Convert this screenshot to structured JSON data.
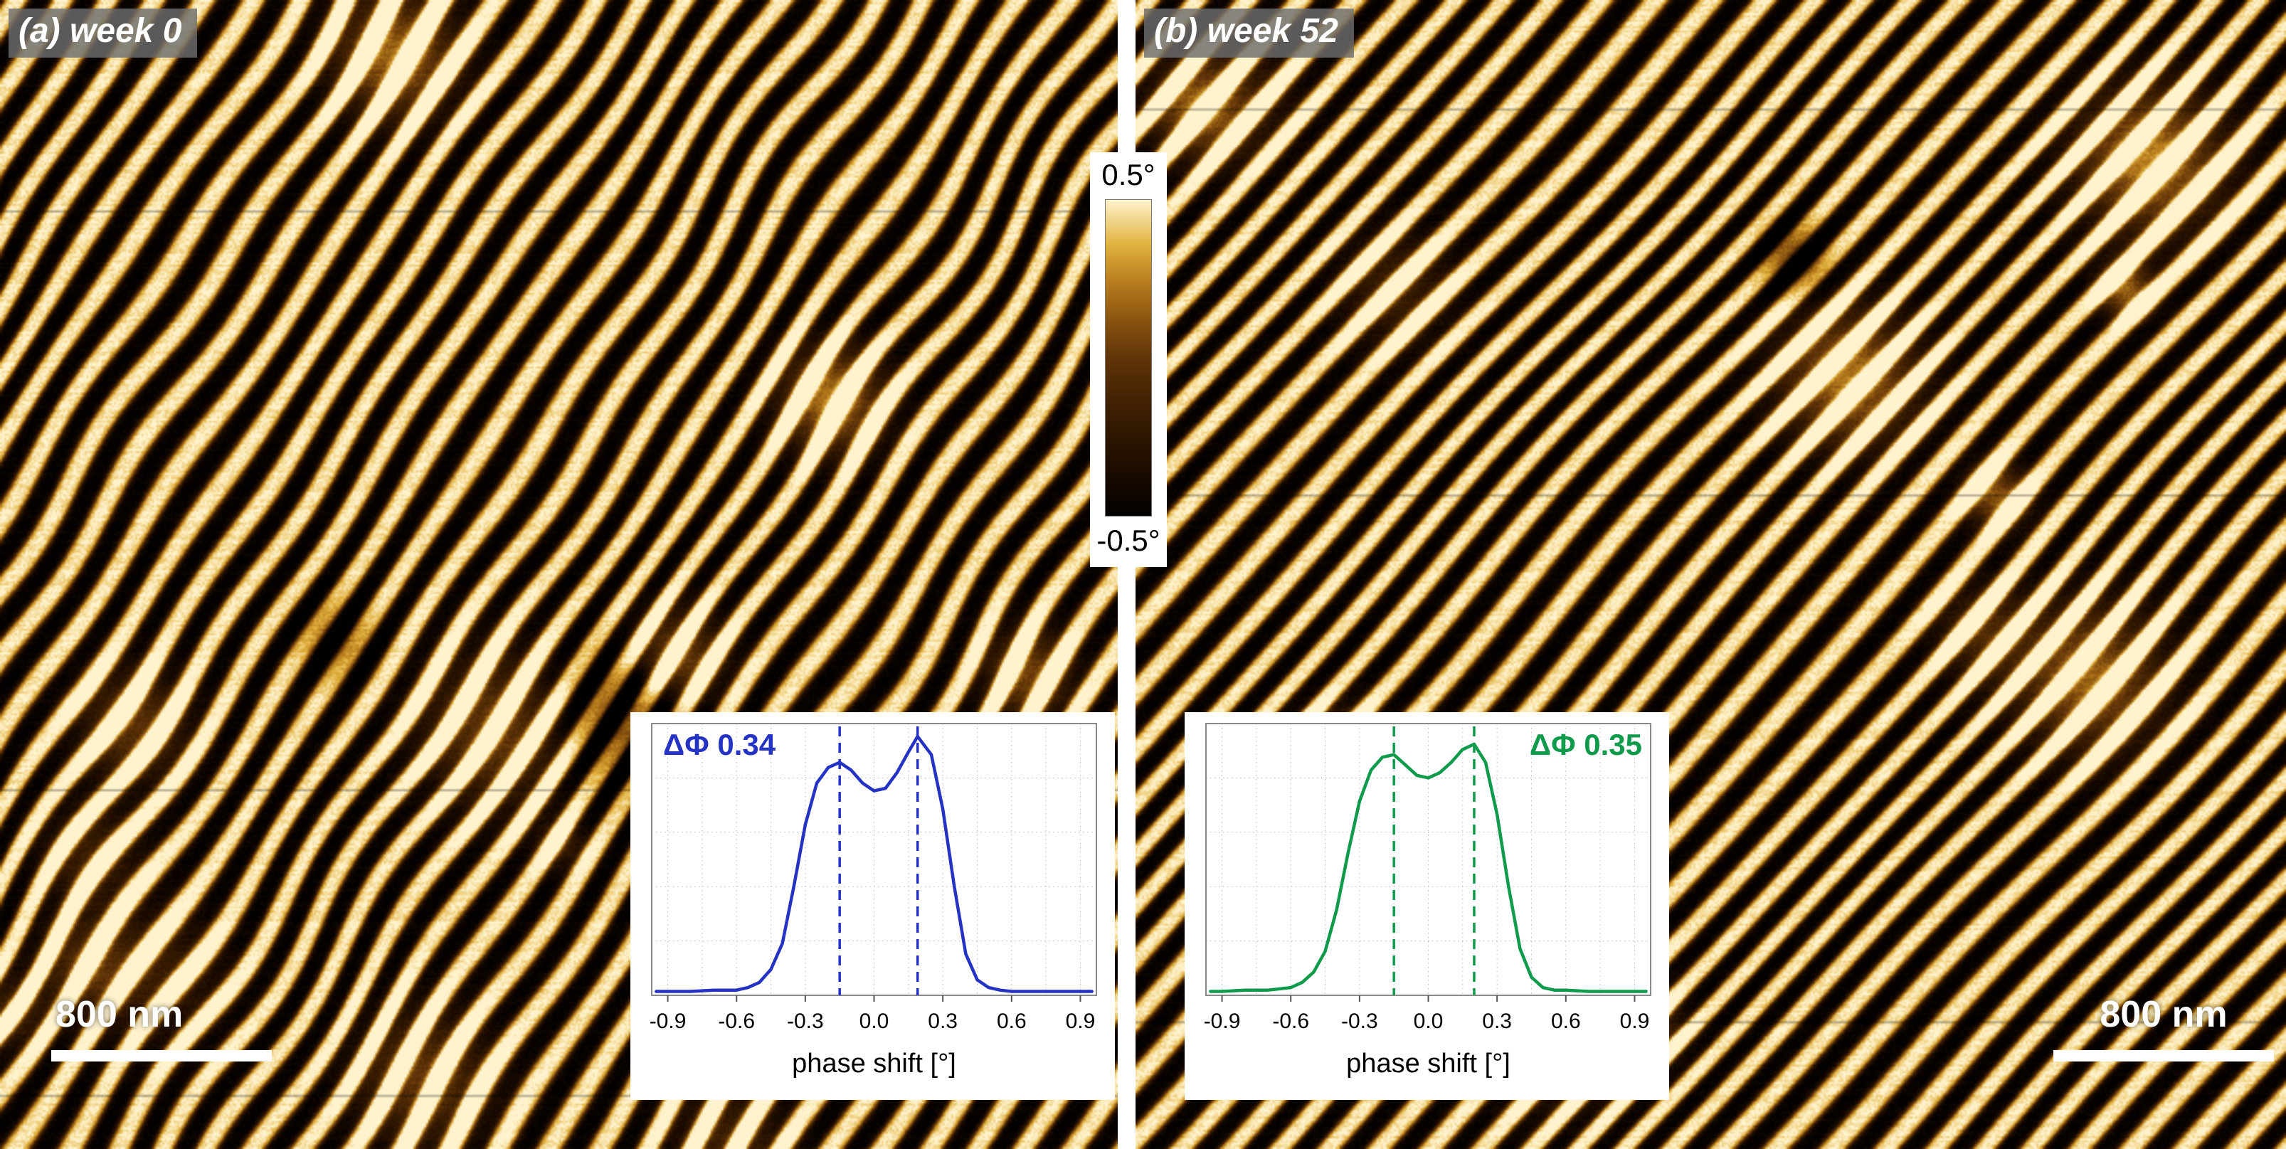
{
  "figure": {
    "panels": [
      {
        "id": "a",
        "label": "(a) week 0",
        "scalebar": "800 nm"
      },
      {
        "id": "b",
        "label": "(b) week 52",
        "scalebar": "800 nm"
      }
    ],
    "colorbar": {
      "top": "0.5°",
      "bottom": "-0.5°"
    }
  },
  "afm": {
    "colormap": [
      {
        "t": 0.0,
        "c": "#030100"
      },
      {
        "t": 0.15,
        "c": "#1c0c00"
      },
      {
        "t": 0.35,
        "c": "#3f2002"
      },
      {
        "t": 0.5,
        "c": "#613509"
      },
      {
        "t": 0.62,
        "c": "#8a5410"
      },
      {
        "t": 0.74,
        "c": "#b87d1e"
      },
      {
        "t": 0.86,
        "c": "#e2b23f"
      },
      {
        "t": 1.0,
        "c": "#fff3cd"
      }
    ]
  },
  "chart_data": [
    {
      "type": "line",
      "label": "ΔΦ 0.34",
      "label_pos": "left",
      "color": "#2433c4",
      "xlabel": "phase shift [°]",
      "xticks": [
        -0.9,
        -0.6,
        -0.3,
        0.0,
        0.3,
        0.6,
        0.9
      ],
      "xtick_labels": [
        "-0.9",
        "-0.6",
        "-0.3",
        "0.0",
        "0.3",
        "0.6",
        "0.9"
      ],
      "xlim": [
        -0.97,
        0.97
      ],
      "ylim": [
        0,
        1.05
      ],
      "grid": true,
      "peak_lines": [
        -0.15,
        0.19
      ],
      "points": [
        [
          -0.95,
          0.015
        ],
        [
          -0.9,
          0.015
        ],
        [
          -0.8,
          0.015
        ],
        [
          -0.7,
          0.02
        ],
        [
          -0.6,
          0.02
        ],
        [
          -0.55,
          0.03
        ],
        [
          -0.5,
          0.05
        ],
        [
          -0.45,
          0.1
        ],
        [
          -0.4,
          0.2
        ],
        [
          -0.35,
          0.42
        ],
        [
          -0.3,
          0.66
        ],
        [
          -0.25,
          0.82
        ],
        [
          -0.2,
          0.88
        ],
        [
          -0.15,
          0.9
        ],
        [
          -0.1,
          0.87
        ],
        [
          -0.05,
          0.82
        ],
        [
          0.0,
          0.79
        ],
        [
          0.05,
          0.8
        ],
        [
          0.1,
          0.86
        ],
        [
          0.15,
          0.94
        ],
        [
          0.19,
          1.0
        ],
        [
          0.25,
          0.93
        ],
        [
          0.3,
          0.72
        ],
        [
          0.35,
          0.42
        ],
        [
          0.4,
          0.16
        ],
        [
          0.45,
          0.06
        ],
        [
          0.5,
          0.03
        ],
        [
          0.55,
          0.02
        ],
        [
          0.6,
          0.015
        ],
        [
          0.7,
          0.015
        ],
        [
          0.8,
          0.015
        ],
        [
          0.9,
          0.015
        ],
        [
          0.95,
          0.015
        ]
      ]
    },
    {
      "type": "line",
      "label": "ΔΦ 0.35",
      "label_pos": "right",
      "color": "#0f9a4c",
      "xlabel": "phase shift [°]",
      "xticks": [
        -0.9,
        -0.6,
        -0.3,
        0.0,
        0.3,
        0.6,
        0.9
      ],
      "xtick_labels": [
        "-0.9",
        "-0.6",
        "-0.3",
        "0.0",
        "0.3",
        "0.6",
        "0.9"
      ],
      "xlim": [
        -0.97,
        0.97
      ],
      "ylim": [
        0,
        1.05
      ],
      "grid": true,
      "peak_lines": [
        -0.15,
        0.2
      ],
      "points": [
        [
          -0.95,
          0.015
        ],
        [
          -0.9,
          0.015
        ],
        [
          -0.8,
          0.02
        ],
        [
          -0.7,
          0.02
        ],
        [
          -0.6,
          0.03
        ],
        [
          -0.55,
          0.05
        ],
        [
          -0.5,
          0.09
        ],
        [
          -0.45,
          0.17
        ],
        [
          -0.4,
          0.33
        ],
        [
          -0.35,
          0.55
        ],
        [
          -0.3,
          0.75
        ],
        [
          -0.25,
          0.87
        ],
        [
          -0.2,
          0.92
        ],
        [
          -0.15,
          0.93
        ],
        [
          -0.1,
          0.89
        ],
        [
          -0.05,
          0.85
        ],
        [
          0.0,
          0.84
        ],
        [
          0.05,
          0.86
        ],
        [
          0.1,
          0.9
        ],
        [
          0.15,
          0.95
        ],
        [
          0.2,
          0.97
        ],
        [
          0.25,
          0.9
        ],
        [
          0.3,
          0.7
        ],
        [
          0.35,
          0.42
        ],
        [
          0.4,
          0.18
        ],
        [
          0.45,
          0.07
        ],
        [
          0.5,
          0.03
        ],
        [
          0.55,
          0.02
        ],
        [
          0.6,
          0.02
        ],
        [
          0.7,
          0.015
        ],
        [
          0.8,
          0.015
        ],
        [
          0.9,
          0.015
        ],
        [
          0.95,
          0.015
        ]
      ]
    }
  ]
}
